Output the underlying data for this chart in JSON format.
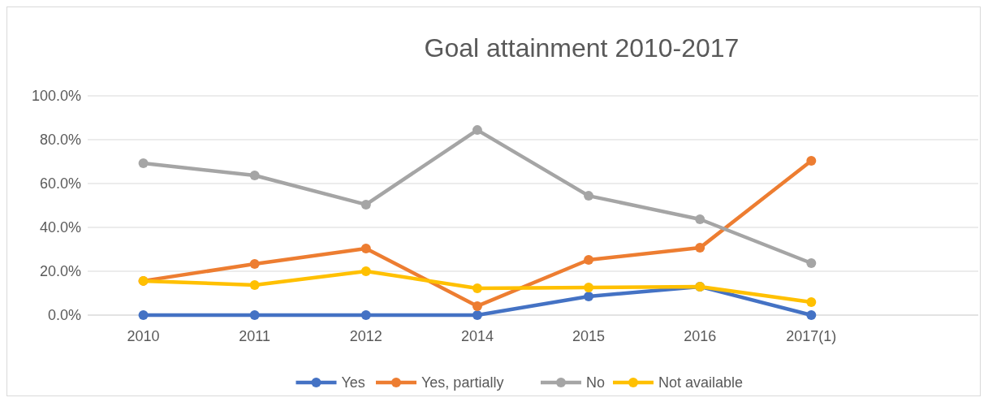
{
  "chart_data": {
    "type": "line",
    "title": "Goal attainment 2010-2017",
    "categories": [
      "2010",
      "2011",
      "2012",
      "2014",
      "2015",
      "2016",
      "2017(1)",
      null
    ],
    "series": [
      {
        "name": "Yes",
        "color": "#4472c4",
        "values": [
          0,
          0,
          0,
          0,
          8.5,
          13,
          0,
          null
        ]
      },
      {
        "name": "Yes, partially",
        "color": "#ed7d31",
        "values": [
          15.6,
          23.3,
          30.4,
          4.1,
          25.2,
          30.7,
          70.4,
          null
        ]
      },
      {
        "name": "No",
        "color": "#a5a5a5",
        "values": [
          69.3,
          63.7,
          50.4,
          84.4,
          54.4,
          43.7,
          23.7,
          null
        ]
      },
      {
        "name": "Not available",
        "color": "#ffc000",
        "values": [
          15.6,
          13.7,
          20.0,
          12.2,
          12.6,
          13.0,
          5.9,
          null
        ]
      }
    ],
    "ylim": [
      0,
      100
    ],
    "yticks": [
      {
        "value": 0,
        "label": "0.0%"
      },
      {
        "value": 20,
        "label": "20.0%"
      },
      {
        "value": 40,
        "label": "40.0%"
      },
      {
        "value": 60,
        "label": "60.0%"
      },
      {
        "value": 80,
        "label": "80.0%"
      },
      {
        "value": 100,
        "label": "100.0%"
      }
    ],
    "grid": "y",
    "legend": "bottom",
    "marker": "circle",
    "line_style": "solid"
  }
}
